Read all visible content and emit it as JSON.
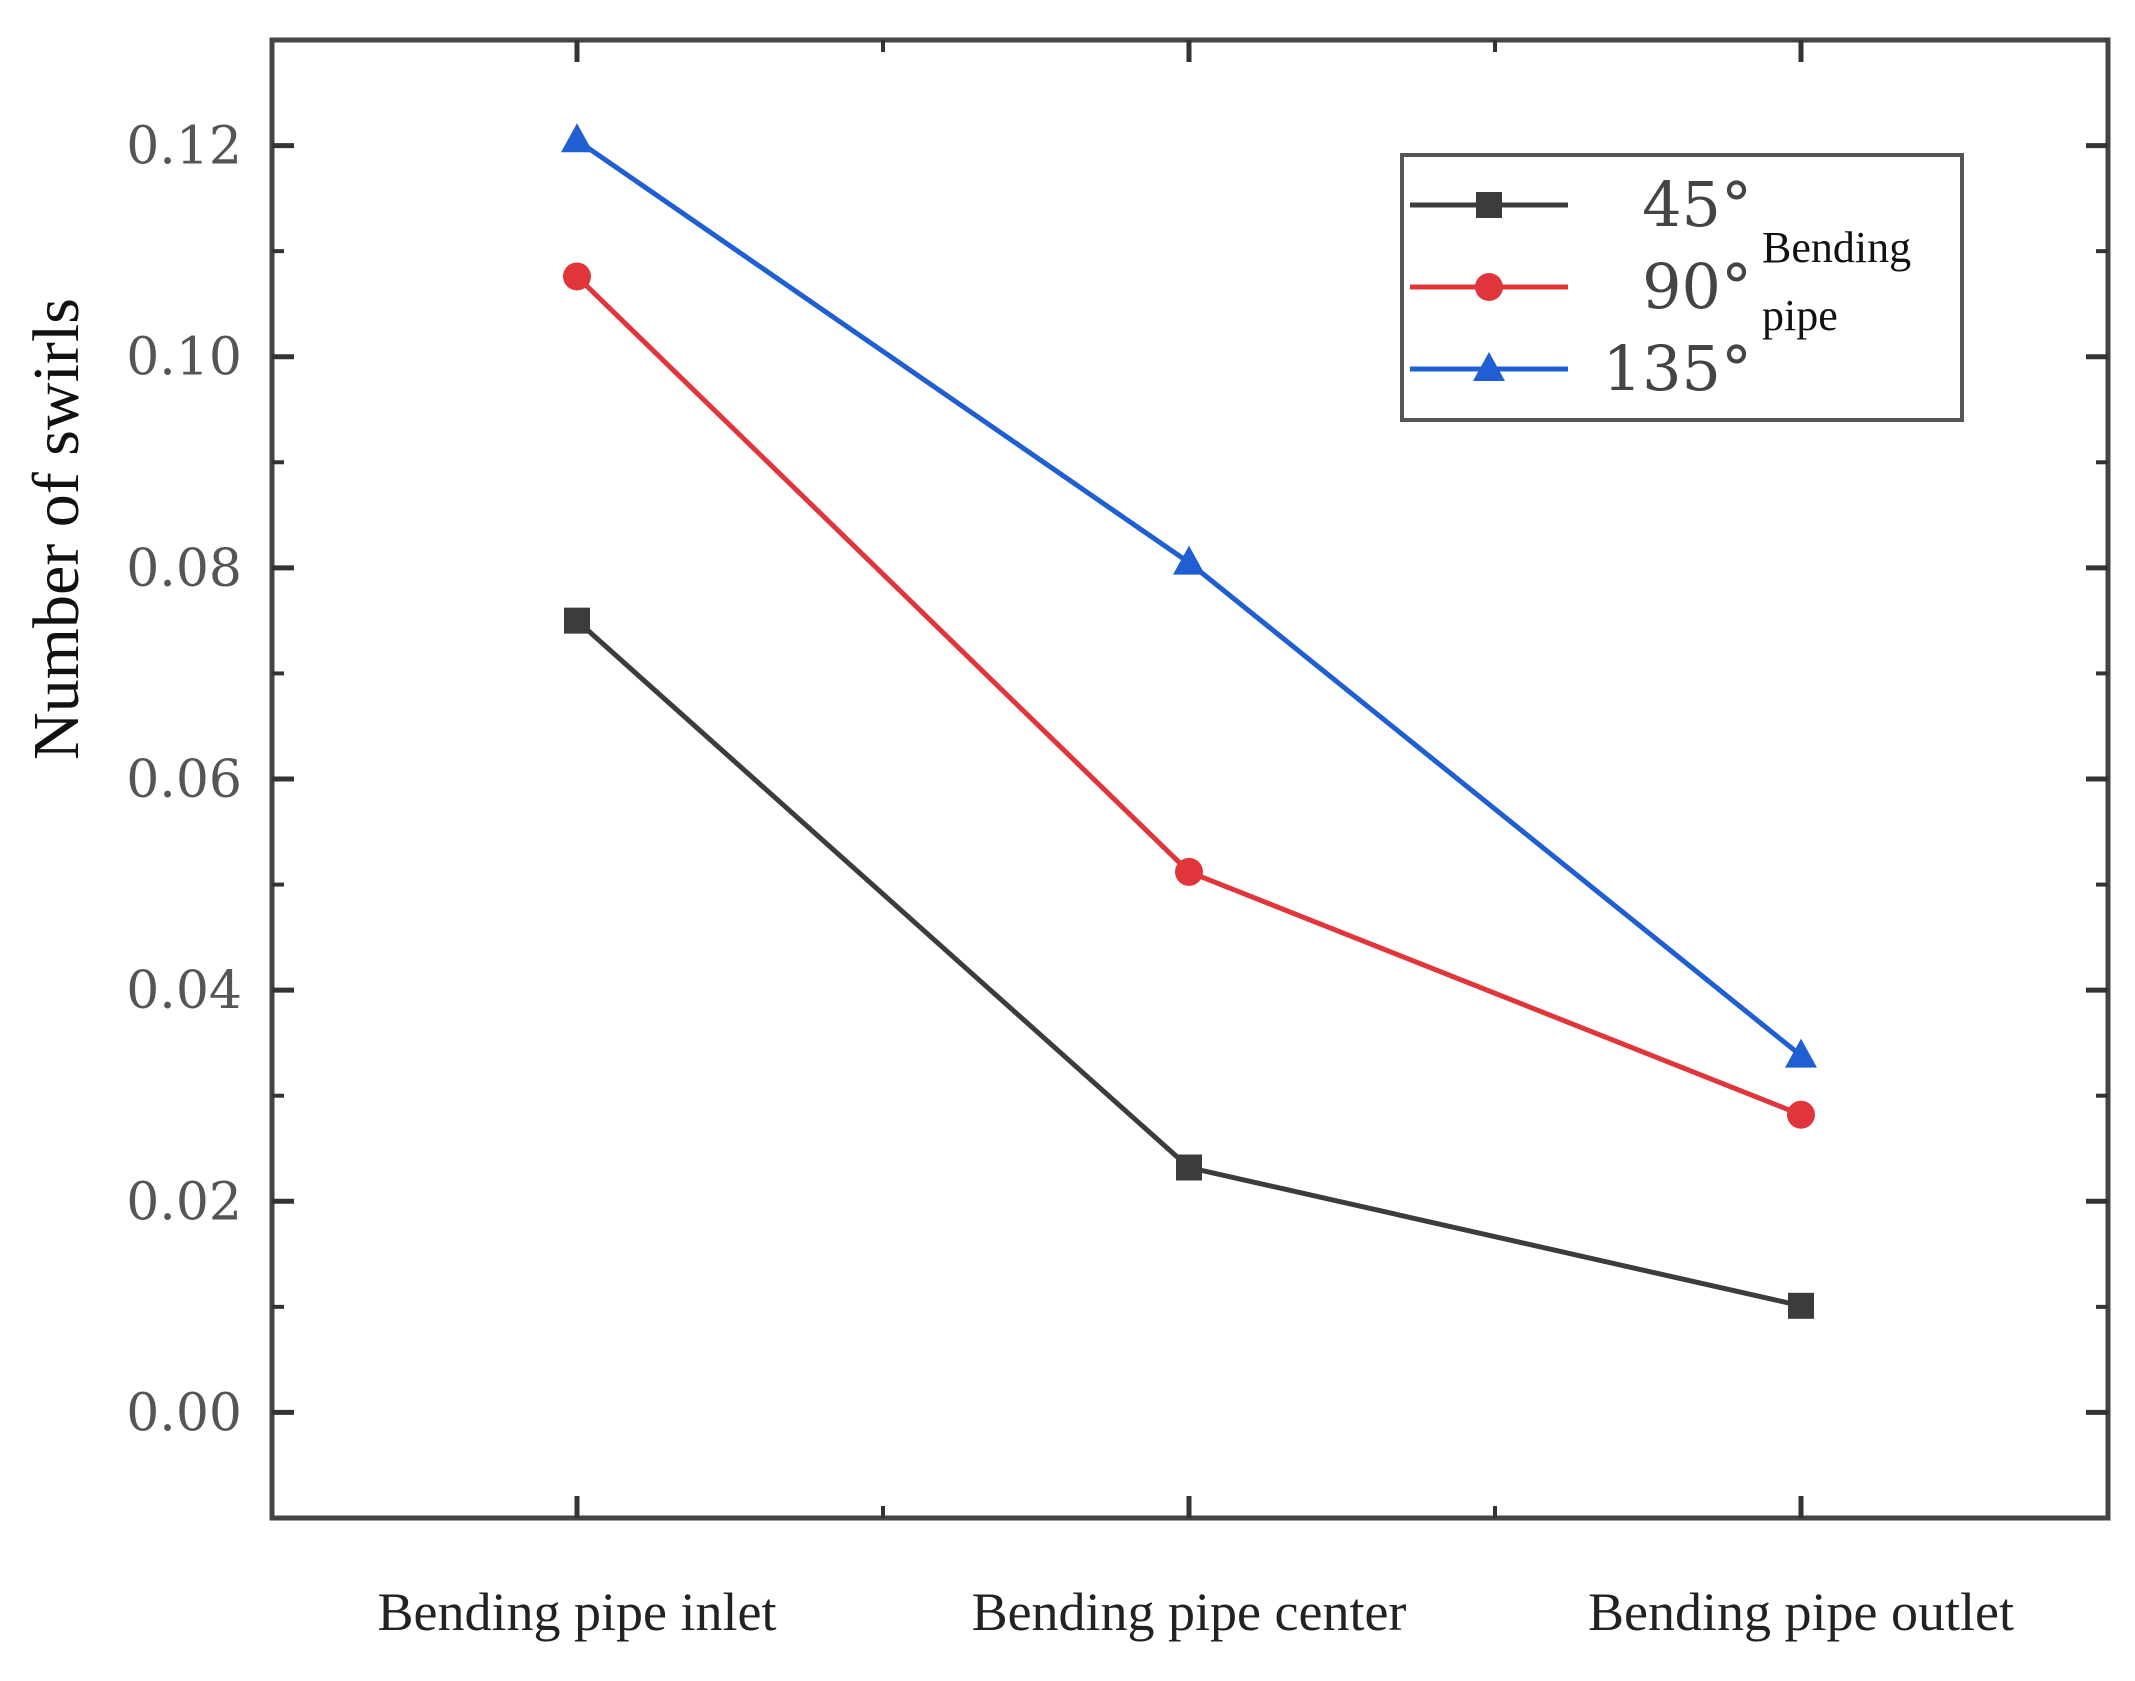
{
  "chart_data": {
    "type": "line",
    "title": "",
    "xlabel": "",
    "ylabel": "Number of swirls",
    "categories": [
      "Bending pipe inlet",
      "Bending pipe center",
      "Bending pipe outlet"
    ],
    "ylim": [
      -0.01,
      0.13
    ],
    "yticks": [
      "0.00",
      "0.02",
      "0.04",
      "0.06",
      "0.08",
      "0.10",
      "0.12"
    ],
    "ytick_values": [
      0.0,
      0.02,
      0.04,
      0.06,
      0.08,
      0.1,
      0.12
    ],
    "series": [
      {
        "name": "45°",
        "color": "#3c3c3c",
        "marker": "square",
        "values": [
          0.075,
          0.0232,
          0.0101
        ]
      },
      {
        "name": "90°",
        "color": "#e0353b",
        "marker": "circle",
        "values": [
          0.1076,
          0.0512,
          0.0282
        ]
      },
      {
        "name": "135°",
        "color": "#1f5fd1",
        "marker": "triangle",
        "values": [
          0.1205,
          0.0805,
          0.0338
        ]
      }
    ],
    "legend": {
      "position": "top-right",
      "note_line1": "Bending",
      "note_line2": "pipe"
    }
  }
}
